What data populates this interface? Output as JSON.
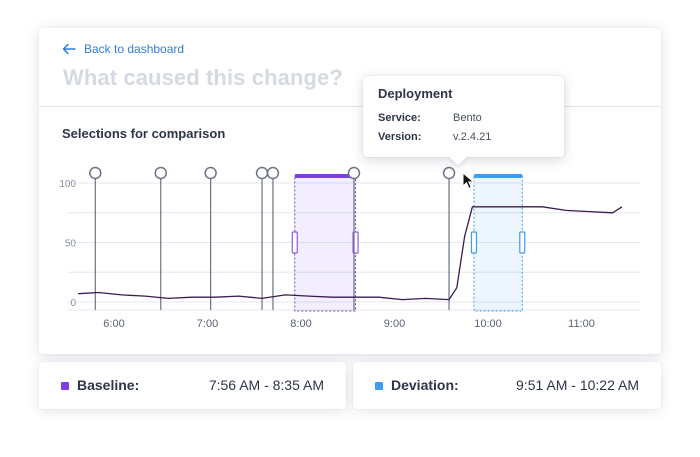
{
  "header": {
    "back_label": "Back to dashboard",
    "question": "What caused this change?"
  },
  "section": {
    "title": "Selections for comparison"
  },
  "tooltip": {
    "title": "Deployment",
    "service_label": "Service:",
    "service_value": "Bento",
    "version_label": "Version:",
    "version_value": "v.2.4.21"
  },
  "legend": {
    "baseline": {
      "label": "Baseline:",
      "range": "7:56 AM - 8:35 AM",
      "color": "#7b3fe4"
    },
    "deviation": {
      "label": "Deviation:",
      "range": "9:51 AM - 10:22 AM",
      "color": "#3b9ef0"
    }
  },
  "colors": {
    "accent": "#2f7ed8",
    "line": "#3a1d4e",
    "marker": "#6b7385"
  },
  "chart_data": {
    "type": "line",
    "y_ticks": [
      "100",
      "50",
      "0"
    ],
    "x_ticks": [
      "6:00",
      "7:00",
      "8:00",
      "9:00",
      "10:00",
      "11:00"
    ],
    "ylim": [
      0,
      100
    ],
    "grid": true,
    "series": [
      {
        "x": [
          "5:37",
          "5:50",
          "6:05",
          "6:20",
          "6:35",
          "6:50",
          "7:05",
          "7:20",
          "7:35",
          "7:50",
          "8:05",
          "8:20",
          "8:35",
          "8:50",
          "9:05",
          "9:20",
          "9:35",
          "9:40",
          "9:45",
          "9:50",
          "10:05",
          "10:20",
          "10:35",
          "10:50",
          "11:05",
          "11:20",
          "11:26"
        ],
        "y": [
          7,
          8,
          6,
          5,
          3,
          4,
          4,
          5,
          3,
          6,
          5,
          4,
          4,
          4,
          2,
          3,
          2,
          12,
          55,
          80,
          80,
          80,
          80,
          77,
          76,
          75,
          80
        ]
      }
    ],
    "deployment_markers": [
      "5:48",
      "6:30",
      "7:02",
      "7:35",
      "7:42",
      "8:34",
      "9:35"
    ],
    "selections": [
      {
        "name": "Baseline",
        "start": "7:56 AM",
        "end": "8:35 AM"
      },
      {
        "name": "Deviation",
        "start": "9:51 AM",
        "end": "10:22 AM"
      }
    ]
  }
}
